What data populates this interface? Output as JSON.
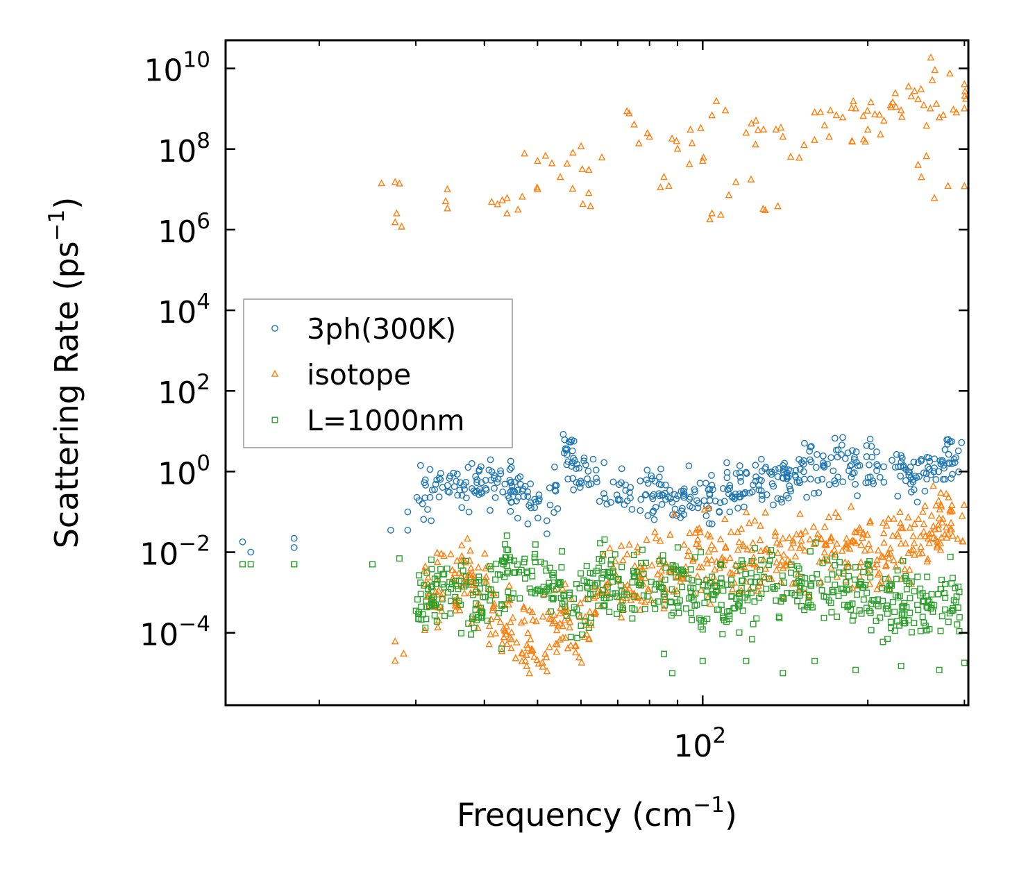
{
  "chart_data": {
    "type": "scatter",
    "xscale": "log",
    "yscale": "log",
    "xlim": [
      13.5,
      305
    ],
    "ylim": [
      1.6e-06,
      50000000000
    ],
    "xlabel_main": "Frequency (cm",
    "xlabel_sup": "−1",
    "xlabel_close": ")",
    "ylabel_main": "Scattering Rate (ps",
    "ylabel_sup": "−1",
    "ylabel_close": ")",
    "x_ticks": [
      {
        "value": 100,
        "base": "10",
        "exp": "2"
      }
    ],
    "y_ticks": [
      {
        "value": 0.0001,
        "base": "10",
        "exp": "−4"
      },
      {
        "value": 0.01,
        "base": "10",
        "exp": "−2"
      },
      {
        "value": 1,
        "base": "10",
        "exp": "0"
      },
      {
        "value": 100,
        "base": "10",
        "exp": "2"
      },
      {
        "value": 10000,
        "base": "10",
        "exp": "4"
      },
      {
        "value": 1000000,
        "base": "10",
        "exp": "6"
      },
      {
        "value": 100000000,
        "base": "10",
        "exp": "8"
      },
      {
        "value": 10000000000,
        "base": "10",
        "exp": "10"
      }
    ],
    "legend_position": "center-left",
    "series": [
      {
        "name": "3ph(300K)",
        "color": "#1f77b4",
        "marker": "circle",
        "anchors": [
          [
            30,
            0.45
          ],
          [
            33,
            0.5
          ],
          [
            36,
            0.45
          ],
          [
            40,
            0.5
          ],
          [
            46,
            0.45
          ],
          [
            48,
            0.12
          ],
          [
            52,
            0.15
          ],
          [
            55,
            0.4
          ],
          [
            56,
            3.5
          ],
          [
            58,
            1.5
          ],
          [
            60,
            1.0
          ],
          [
            65,
            0.5
          ],
          [
            70,
            0.3
          ],
          [
            80,
            0.3
          ],
          [
            90,
            0.25
          ],
          [
            100,
            0.28
          ],
          [
            115,
            0.35
          ],
          [
            130,
            0.5
          ],
          [
            150,
            1.0
          ],
          [
            170,
            1.5
          ],
          [
            180,
            3.0
          ],
          [
            190,
            1.0
          ],
          [
            210,
            1.5
          ],
          [
            230,
            1.0
          ],
          [
            250,
            0.8
          ],
          [
            270,
            1.5
          ],
          [
            300,
            2.0
          ]
        ],
        "spread": 0.3,
        "count": 500,
        "extra": [
          [
            14.5,
            0.018
          ],
          [
            15,
            0.01
          ],
          [
            18,
            0.022
          ],
          [
            18,
            0.013
          ],
          [
            27,
            0.035
          ],
          [
            29,
            0.1
          ],
          [
            29,
            0.035
          ],
          [
            31,
            0.065
          ],
          [
            32,
            0.06
          ],
          [
            46,
            0.07
          ],
          [
            48,
            0.05
          ],
          [
            52,
            0.06
          ],
          [
            112,
            0.1
          ],
          [
            150,
            0.6
          ],
          [
            180,
            7.0
          ],
          [
            230,
            2.5
          ]
        ]
      },
      {
        "name": "isotope",
        "color": "#ff7f0e",
        "marker": "triangle",
        "anchors": [
          [
            31,
            0.0008
          ],
          [
            35,
            0.002
          ],
          [
            38,
            0.0015
          ],
          [
            40,
            0.001
          ],
          [
            42,
            0.0003
          ],
          [
            45,
            0.0001
          ],
          [
            48,
            7e-05
          ],
          [
            52,
            7e-05
          ],
          [
            55,
            0.00012
          ],
          [
            58,
            0.00013
          ],
          [
            62,
            0.00015
          ],
          [
            65,
            0.002
          ],
          [
            70,
            0.001
          ],
          [
            75,
            0.002
          ],
          [
            85,
            0.004
          ],
          [
            100,
            0.006
          ],
          [
            120,
            0.007
          ],
          [
            150,
            0.008
          ],
          [
            180,
            0.01
          ],
          [
            200,
            0.009
          ],
          [
            230,
            0.012
          ],
          [
            250,
            0.03
          ],
          [
            270,
            0.05
          ],
          [
            300,
            0.06
          ]
        ],
        "spread": 0.5,
        "count": 600,
        "upper_points": [
          [
            27.5,
            15000000
          ],
          [
            27.5,
            1500000
          ],
          [
            34,
            5000000
          ],
          [
            44,
            6000000
          ],
          [
            44,
            2500000
          ],
          [
            50,
            50000000
          ],
          [
            50,
            10000000
          ],
          [
            55,
            20000000
          ],
          [
            58,
            80000000
          ],
          [
            62,
            30000000
          ],
          [
            62,
            8000000
          ],
          [
            75,
            400000000
          ],
          [
            80,
            200000000
          ],
          [
            85,
            20000000
          ],
          [
            90,
            100000000
          ],
          [
            95,
            300000000
          ],
          [
            100,
            50000000
          ],
          [
            104,
            2500000
          ],
          [
            110,
            900000000
          ],
          [
            115,
            15000000
          ],
          [
            120,
            250000000
          ],
          [
            125,
            500000000
          ],
          [
            130,
            3000000
          ],
          [
            140,
            200000000
          ],
          [
            150,
            60000000
          ],
          [
            160,
            800000000
          ],
          [
            170,
            200000000
          ],
          [
            180,
            600000000
          ],
          [
            190,
            1000000000
          ],
          [
            200,
            300000000
          ],
          [
            210,
            700000000
          ],
          [
            220,
            1200000000
          ],
          [
            230,
            900000000
          ],
          [
            240,
            2000000000
          ],
          [
            250,
            3000000000
          ],
          [
            260,
            1000000000
          ],
          [
            270,
            600000000
          ],
          [
            280,
            12000000
          ],
          [
            290,
            800000000
          ],
          [
            300,
            4000000000
          ],
          [
            300,
            1000000000
          ],
          [
            265,
            9000000000
          ],
          [
            247,
            40000000
          ],
          [
            214,
            500000000
          ],
          [
            198,
            150000000
          ]
        ],
        "extra": [
          [
            27.5,
            2e-05
          ],
          [
            28.5,
            3e-05
          ],
          [
            27.5,
            6e-05
          ],
          [
            33,
            0.0002
          ],
          [
            76,
            0.0008
          ],
          [
            85,
            0.0004
          ],
          [
            140,
            0.0007
          ]
        ]
      },
      {
        "name": "L=1000nm",
        "color": "#2ca02c",
        "marker": "square",
        "anchors": [
          [
            30,
            0.0008
          ],
          [
            33,
            0.001
          ],
          [
            36,
            0.001
          ],
          [
            40,
            0.0007
          ],
          [
            45,
            0.0035
          ],
          [
            50,
            0.003
          ],
          [
            55,
            0.0015
          ],
          [
            58,
            0.0006
          ],
          [
            62,
            0.001
          ],
          [
            66,
            0.002
          ],
          [
            70,
            0.0015
          ],
          [
            80,
            0.0012
          ],
          [
            100,
            0.001
          ],
          [
            120,
            0.001
          ],
          [
            150,
            0.0015
          ],
          [
            180,
            0.0015
          ],
          [
            200,
            0.0012
          ],
          [
            230,
            0.0006
          ],
          [
            260,
            0.0005
          ],
          [
            300,
            0.0007
          ]
        ],
        "spread": 0.45,
        "count": 650,
        "extra": [
          [
            14.5,
            0.005
          ],
          [
            15,
            0.005
          ],
          [
            18,
            0.005
          ],
          [
            18,
            0.005
          ],
          [
            25,
            0.005
          ],
          [
            28,
            0.007
          ],
          [
            43,
            4e-05
          ],
          [
            56,
            0.0006
          ],
          [
            60,
            0.00015
          ],
          [
            85,
            3e-05
          ],
          [
            88,
            1e-05
          ],
          [
            100,
            2e-05
          ],
          [
            120,
            2e-05
          ],
          [
            140,
            1e-05
          ],
          [
            160,
            2e-05
          ],
          [
            190,
            1.2e-05
          ],
          [
            230,
            1.5e-05
          ],
          [
            270,
            1.2e-05
          ],
          [
            300,
            1.8e-05
          ]
        ]
      }
    ]
  }
}
